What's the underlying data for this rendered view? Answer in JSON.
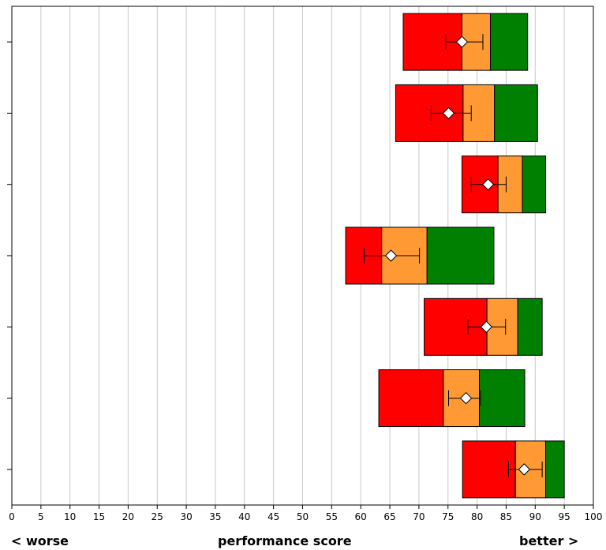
{
  "chart_data": {
    "type": "bar",
    "orientation": "horizontal",
    "xlim": [
      0,
      100
    ],
    "x_ticks": [
      0,
      5,
      10,
      15,
      20,
      25,
      30,
      35,
      40,
      45,
      50,
      55,
      60,
      65,
      70,
      75,
      80,
      85,
      90,
      95,
      100
    ],
    "grid": "vertical",
    "segment_colors": {
      "low": "#ff0000",
      "mid": "#ff9933",
      "high": "#008000"
    },
    "rows": [
      {
        "low_start": 67.3,
        "mid_start": 77.4,
        "high_start": 82.3,
        "end": 88.7,
        "mean": 77.4,
        "ci": [
          74.6,
          81.0
        ]
      },
      {
        "low_start": 66.0,
        "mid_start": 77.6,
        "high_start": 83.0,
        "end": 90.4,
        "mean": 75.1,
        "ci": [
          72.1,
          79.0
        ]
      },
      {
        "low_start": 77.4,
        "mid_start": 83.6,
        "high_start": 87.8,
        "end": 91.8,
        "mean": 81.9,
        "ci": [
          79.0,
          85.0
        ]
      },
      {
        "low_start": 57.4,
        "mid_start": 63.6,
        "high_start": 71.4,
        "end": 82.9,
        "mean": 65.2,
        "ci": [
          60.6,
          70.1
        ]
      },
      {
        "low_start": 70.9,
        "mid_start": 81.7,
        "high_start": 87.0,
        "end": 91.2,
        "mean": 81.6,
        "ci": [
          78.4,
          84.9
        ]
      },
      {
        "low_start": 63.1,
        "mid_start": 74.2,
        "high_start": 80.4,
        "end": 88.2,
        "mean": 78.1,
        "ci": [
          75.1,
          80.6
        ]
      },
      {
        "low_start": 77.5,
        "mid_start": 86.6,
        "high_start": 91.8,
        "end": 95.0,
        "mean": 88.1,
        "ci": [
          85.4,
          91.2
        ]
      }
    ]
  },
  "labels": {
    "left": "< worse",
    "center": "performance score",
    "right": "better >"
  }
}
